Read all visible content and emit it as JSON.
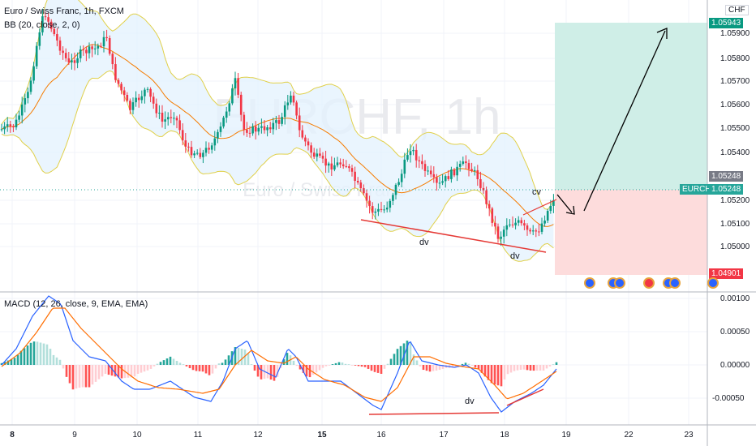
{
  "header": {
    "title": "Euro / Swiss Franc, 1h, FXCM",
    "indicator": "BB (20, close, 2, 0)",
    "macd_label": "MACD (12, 26, close, 9, EMA, EMA)",
    "currency": "CHF",
    "watermark": "EURCHF, 1h",
    "watermark_sub": "Euro / Swiss Franc"
  },
  "price_axis": {
    "ticks": [
      "1.05900",
      "1.05800",
      "1.05700",
      "1.05600",
      "1.05500",
      "1.05400",
      "1.05200",
      "1.05100",
      "1.05000"
    ],
    "target_tag": "1.05943",
    "last_tag": "1.05248",
    "stop_tag": "1.04901",
    "symbol_tag": "EURCHF",
    "symbol_price": "1.05248"
  },
  "macd_axis": {
    "ticks": [
      "0.00100",
      "0.00050",
      "0.00000",
      "-0.00050"
    ]
  },
  "time_axis": {
    "ticks": [
      "8",
      "9",
      "10",
      "11",
      "12",
      "15",
      "16",
      "17",
      "18",
      "19",
      "22",
      "23"
    ]
  },
  "annotations": {
    "dv1": "dv",
    "dv2": "dv",
    "cv": "cv",
    "dv3": "dv"
  },
  "colors": {
    "up": "#26a69a",
    "up_candle": "#089981",
    "down": "#f23645",
    "bb_band": "#e0d04a",
    "bb_fill": "#e3f2fd",
    "bb_basis": "#f57c00",
    "macd_line": "#2962ff",
    "signal_line": "#ff6d00",
    "target_zone": "#cfeee7",
    "stop_zone": "#fddcdc"
  },
  "chart_data": [
    {
      "type": "line",
      "title": "Euro / Swiss Franc, 1h, FXCM",
      "series": [
        {
          "name": "EURCHF",
          "x": [
            "8",
            "9",
            "10",
            "11",
            "12",
            "15",
            "16",
            "17",
            "18",
            "18.75"
          ],
          "values": [
            1.054,
            1.0587,
            1.0562,
            1.054,
            1.055,
            1.0562,
            1.0518,
            1.0535,
            1.0505,
            1.05248
          ]
        }
      ],
      "ylim": [
        1.0488,
        1.0602
      ],
      "position": {
        "entry": 1.05248,
        "target": 1.05943,
        "stop": 1.04901
      }
    },
    {
      "type": "bar",
      "title": "MACD (12, 26, close, 9, EMA, EMA)",
      "ylim": [
        -0.0007,
        0.00115
      ]
    }
  ]
}
